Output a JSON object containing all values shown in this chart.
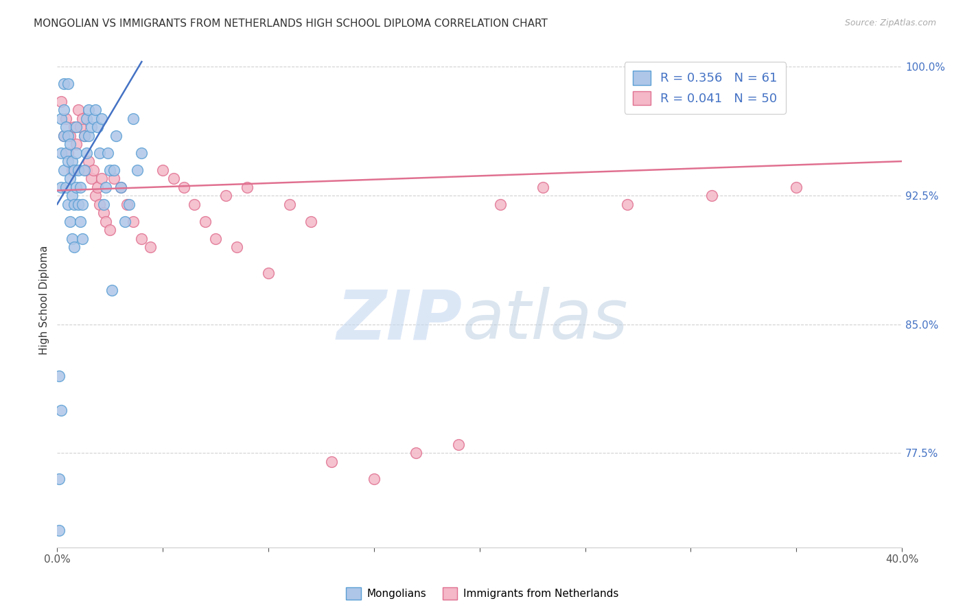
{
  "title": "MONGOLIAN VS IMMIGRANTS FROM NETHERLANDS HIGH SCHOOL DIPLOMA CORRELATION CHART",
  "source": "Source: ZipAtlas.com",
  "ylabel": "High School Diploma",
  "xlim": [
    0.0,
    0.4
  ],
  "ylim": [
    0.72,
    1.008
  ],
  "yticks": [
    0.775,
    0.85,
    0.925,
    1.0
  ],
  "ytick_labels": [
    "77.5%",
    "85.0%",
    "92.5%",
    "100.0%"
  ],
  "xticks": [
    0.0,
    0.05,
    0.1,
    0.15,
    0.2,
    0.25,
    0.3,
    0.35,
    0.4
  ],
  "xtick_labels": [
    "0.0%",
    "",
    "",
    "",
    "",
    "",
    "",
    "",
    "40.0%"
  ],
  "mongolian_color": "#aec6e8",
  "netherlands_color": "#f4b8c8",
  "mongolian_edge": "#5a9fd4",
  "netherlands_edge": "#e07090",
  "trendline_mongolian": "#4472c4",
  "trendline_netherlands": "#e07090",
  "R_mongolian": 0.356,
  "N_mongolian": 61,
  "R_netherlands": 0.041,
  "N_netherlands": 50,
  "legend_label_1": "Mongolians",
  "legend_label_2": "Immigrants from Netherlands",
  "mongolian_x": [
    0.001,
    0.001,
    0.001,
    0.002,
    0.002,
    0.002,
    0.002,
    0.003,
    0.003,
    0.003,
    0.003,
    0.004,
    0.004,
    0.004,
    0.005,
    0.005,
    0.005,
    0.005,
    0.006,
    0.006,
    0.006,
    0.007,
    0.007,
    0.007,
    0.008,
    0.008,
    0.008,
    0.009,
    0.009,
    0.009,
    0.01,
    0.01,
    0.011,
    0.011,
    0.012,
    0.012,
    0.013,
    0.013,
    0.014,
    0.014,
    0.015,
    0.015,
    0.016,
    0.017,
    0.018,
    0.019,
    0.02,
    0.021,
    0.022,
    0.023,
    0.024,
    0.025,
    0.026,
    0.027,
    0.028,
    0.03,
    0.032,
    0.034,
    0.036,
    0.038,
    0.04
  ],
  "mongolian_y": [
    0.82,
    0.76,
    0.73,
    0.8,
    0.93,
    0.95,
    0.97,
    0.94,
    0.96,
    0.975,
    0.99,
    0.93,
    0.95,
    0.965,
    0.92,
    0.945,
    0.96,
    0.99,
    0.91,
    0.935,
    0.955,
    0.9,
    0.925,
    0.945,
    0.895,
    0.92,
    0.94,
    0.93,
    0.95,
    0.965,
    0.92,
    0.94,
    0.91,
    0.93,
    0.9,
    0.92,
    0.94,
    0.96,
    0.95,
    0.97,
    0.96,
    0.975,
    0.965,
    0.97,
    0.975,
    0.965,
    0.95,
    0.97,
    0.92,
    0.93,
    0.95,
    0.94,
    0.87,
    0.94,
    0.96,
    0.93,
    0.91,
    0.92,
    0.97,
    0.94,
    0.95
  ],
  "netherlands_x": [
    0.002,
    0.003,
    0.004,
    0.005,
    0.006,
    0.007,
    0.008,
    0.009,
    0.01,
    0.011,
    0.012,
    0.013,
    0.014,
    0.015,
    0.016,
    0.017,
    0.018,
    0.019,
    0.02,
    0.021,
    0.022,
    0.023,
    0.025,
    0.027,
    0.03,
    0.033,
    0.036,
    0.04,
    0.044,
    0.05,
    0.055,
    0.06,
    0.065,
    0.07,
    0.075,
    0.08,
    0.085,
    0.09,
    0.1,
    0.11,
    0.12,
    0.13,
    0.15,
    0.17,
    0.19,
    0.21,
    0.23,
    0.27,
    0.31,
    0.35
  ],
  "netherlands_y": [
    0.98,
    0.96,
    0.97,
    0.95,
    0.96,
    0.94,
    0.965,
    0.955,
    0.975,
    0.965,
    0.97,
    0.96,
    0.94,
    0.945,
    0.935,
    0.94,
    0.925,
    0.93,
    0.92,
    0.935,
    0.915,
    0.91,
    0.905,
    0.935,
    0.93,
    0.92,
    0.91,
    0.9,
    0.895,
    0.94,
    0.935,
    0.93,
    0.92,
    0.91,
    0.9,
    0.925,
    0.895,
    0.93,
    0.88,
    0.92,
    0.91,
    0.77,
    0.76,
    0.775,
    0.78,
    0.92,
    0.93,
    0.92,
    0.925,
    0.93
  ],
  "trendline_mongolian_x0": 0.0,
  "trendline_mongolian_y0": 0.92,
  "trendline_mongolian_x1": 0.04,
  "trendline_mongolian_y1": 1.003,
  "trendline_netherlands_x0": 0.0,
  "trendline_netherlands_y0": 0.928,
  "trendline_netherlands_x1": 0.4,
  "trendline_netherlands_y1": 0.945
}
